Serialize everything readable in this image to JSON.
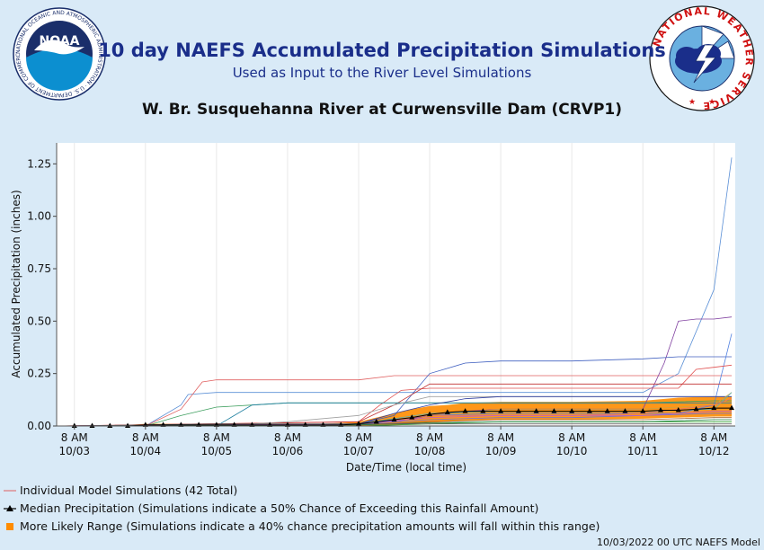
{
  "header": {
    "title": "10 day NAEFS Accumulated Precipitation Simulations",
    "subtitle": "Used as Input to the River Level Simulations",
    "station": "W. Br. Susquehanna River at Curwensville Dam (CRVP1)"
  },
  "logos": {
    "noaa": {
      "text": "NOAA",
      "ring_text": "NATIONAL OCEANIC AND ATMOSPHERIC ADMINISTRATION · U.S. DEPARTMENT OF COMMERCE"
    },
    "nws": {
      "ring_text": "NATIONAL WEATHER SERVICE"
    }
  },
  "legend": {
    "individual": "Individual Model Simulations (42 Total)",
    "median": "Median Precipitation (Simulations indicate a 50% Chance of Exceeding this Rainfall Amount)",
    "range": "More Likely Range (Simulations indicate a 40% chance precipitation amounts will fall within this range)"
  },
  "footer": {
    "model_run": "10/03/2022 00 UTC NAEFS Model"
  },
  "colors": {
    "median": "#000000",
    "range_fill": "#ff8c00",
    "individual_default": "#d04040",
    "axis_text": "#111111",
    "plot_bg": "#ffffff"
  },
  "chart_data": {
    "type": "line",
    "xlabel": "Date/Time (local time)",
    "ylabel": "Accumulated Precipitation (inches)",
    "ylim": [
      0,
      1.35
    ],
    "xlim": [
      -0.25,
      9.3
    ],
    "y_ticks": [
      "0.00",
      "0.25",
      "0.50",
      "0.75",
      "1.00",
      "1.25"
    ],
    "y_tick_values": [
      0,
      0.25,
      0.5,
      0.75,
      1.0,
      1.25
    ],
    "x_tick_labels": [
      {
        "time": "8 AM",
        "date": "10/03"
      },
      {
        "time": "8 AM",
        "date": "10/04"
      },
      {
        "time": "8 AM",
        "date": "10/05"
      },
      {
        "time": "8 AM",
        "date": "10/06"
      },
      {
        "time": "8 AM",
        "date": "10/07"
      },
      {
        "time": "8 AM",
        "date": "10/08"
      },
      {
        "time": "8 AM",
        "date": "10/09"
      },
      {
        "time": "8 AM",
        "date": "10/10"
      },
      {
        "time": "8 AM",
        "date": "10/11"
      },
      {
        "time": "8 AM",
        "date": "10/12"
      }
    ],
    "x_tick_values": [
      0,
      1,
      2,
      3,
      4,
      5,
      6,
      7,
      8,
      9
    ],
    "x_unit": "days after 8 AM 10/03",
    "median": {
      "x": [
        -0.25,
        0,
        0.25,
        0.5,
        0.75,
        1,
        1.25,
        1.5,
        1.75,
        2,
        2.25,
        2.5,
        2.75,
        3,
        3.25,
        3.5,
        3.75,
        4,
        4.25,
        4.5,
        4.75,
        5,
        5.25,
        5.5,
        5.75,
        6,
        6.25,
        6.5,
        6.75,
        7,
        7.25,
        7.5,
        7.75,
        8,
        8.25,
        8.5,
        8.75,
        9,
        9.25
      ],
      "y": [
        0,
        0,
        0,
        0,
        0,
        0.005,
        0.005,
        0.005,
        0.005,
        0.005,
        0.005,
        0.005,
        0.005,
        0.005,
        0.005,
        0.005,
        0.005,
        0.01,
        0.02,
        0.03,
        0.04,
        0.055,
        0.065,
        0.07,
        0.07,
        0.07,
        0.07,
        0.07,
        0.07,
        0.07,
        0.07,
        0.07,
        0.07,
        0.07,
        0.075,
        0.075,
        0.08,
        0.085,
        0.085
      ]
    },
    "range": {
      "x": [
        -0.25,
        0,
        0.5,
        1,
        1.5,
        2,
        2.5,
        3,
        3.5,
        4,
        4.25,
        4.5,
        4.75,
        5,
        5.25,
        5.5,
        6,
        7,
        8,
        8.5,
        9,
        9.25
      ],
      "low": [
        0,
        0,
        0,
        0,
        0,
        0,
        0,
        0,
        0,
        0,
        0,
        0.005,
        0.01,
        0.015,
        0.02,
        0.025,
        0.03,
        0.03,
        0.035,
        0.04,
        0.045,
        0.045
      ],
      "high": [
        0,
        0,
        0,
        0.01,
        0.01,
        0.01,
        0.01,
        0.01,
        0.01,
        0.02,
        0.04,
        0.06,
        0.08,
        0.095,
        0.1,
        0.11,
        0.115,
        0.115,
        0.12,
        0.135,
        0.14,
        0.14
      ]
    },
    "series": [
      {
        "color": "#5a8fd6",
        "x": [
          -0.25,
          1,
          1.5,
          1.6,
          2,
          3,
          3.5,
          4,
          4.5,
          5,
          5.5,
          6,
          7,
          8,
          8.5,
          9,
          9.25
        ],
        "y": [
          0,
          0,
          0.1,
          0.15,
          0.16,
          0.16,
          0.16,
          0.16,
          0.16,
          0.16,
          0.16,
          0.16,
          0.16,
          0.16,
          0.25,
          0.65,
          1.28
        ]
      },
      {
        "color": "#e06060",
        "x": [
          -0.25,
          1,
          1.5,
          1.8,
          2,
          3,
          4,
          4.5,
          5,
          6,
          7,
          8,
          9,
          9.25
        ],
        "y": [
          0,
          0,
          0.08,
          0.21,
          0.22,
          0.22,
          0.22,
          0.24,
          0.24,
          0.24,
          0.24,
          0.24,
          0.24,
          0.24
        ]
      },
      {
        "color": "#8040a0",
        "x": [
          -0.25,
          3,
          4,
          4.5,
          5,
          5.5,
          6,
          7,
          8,
          8.3,
          8.5,
          8.75,
          9,
          9.25
        ],
        "y": [
          0,
          0,
          0.01,
          0.02,
          0.05,
          0.07,
          0.08,
          0.08,
          0.08,
          0.3,
          0.5,
          0.51,
          0.51,
          0.52
        ]
      },
      {
        "color": "#4060c0",
        "x": [
          -0.25,
          3,
          4,
          4.5,
          5,
          5.5,
          6,
          7,
          8,
          8.5,
          9,
          9.25
        ],
        "y": [
          0,
          0,
          0.01,
          0.05,
          0.25,
          0.3,
          0.31,
          0.31,
          0.32,
          0.33,
          0.33,
          0.33
        ]
      },
      {
        "color": "#5080e0",
        "x": [
          -0.25,
          4,
          5,
          6,
          7,
          8,
          8.5,
          9,
          9.25
        ],
        "y": [
          0,
          0.01,
          0.05,
          0.06,
          0.06,
          0.06,
          0.06,
          0.1,
          0.44
        ]
      },
      {
        "color": "#e05050",
        "x": [
          -0.25,
          4,
          4.3,
          4.6,
          5,
          6,
          7,
          8,
          8.5,
          8.75,
          9,
          9.25
        ],
        "y": [
          0,
          0.02,
          0.1,
          0.17,
          0.18,
          0.18,
          0.18,
          0.18,
          0.18,
          0.27,
          0.28,
          0.29
        ]
      },
      {
        "color": "#c03030",
        "x": [
          -0.25,
          4,
          4.5,
          5,
          6,
          7,
          8,
          9,
          9.25
        ],
        "y": [
          0,
          0.02,
          0.1,
          0.2,
          0.2,
          0.2,
          0.2,
          0.2,
          0.2
        ]
      },
      {
        "color": "#40a060",
        "x": [
          -0.25,
          1,
          1.5,
          2,
          2.5,
          3,
          4,
          5,
          6,
          7,
          8,
          9,
          9.25
        ],
        "y": [
          0,
          0,
          0.05,
          0.09,
          0.1,
          0.11,
          0.11,
          0.11,
          0.11,
          0.11,
          0.11,
          0.12,
          0.12
        ]
      },
      {
        "color": "#2080a0",
        "x": [
          -0.25,
          2,
          2.5,
          3,
          4,
          5,
          6,
          7,
          8,
          9,
          9.25
        ],
        "y": [
          0,
          0,
          0.1,
          0.11,
          0.11,
          0.11,
          0.11,
          0.11,
          0.11,
          0.11,
          0.11
        ]
      },
      {
        "color": "#a0a0a0",
        "x": [
          -0.25,
          2,
          3,
          4,
          4.5,
          5,
          6,
          7,
          8,
          9,
          9.25
        ],
        "y": [
          0,
          0,
          0.02,
          0.05,
          0.1,
          0.14,
          0.14,
          0.14,
          0.14,
          0.14,
          0.14
        ]
      },
      {
        "color": "#3040a0",
        "x": [
          -0.25,
          4,
          4.5,
          5,
          5.5,
          6,
          7,
          8,
          9,
          9.25
        ],
        "y": [
          0,
          0.01,
          0.06,
          0.1,
          0.13,
          0.14,
          0.14,
          0.14,
          0.14,
          0.14
        ]
      },
      {
        "color": "#d0a040",
        "x": [
          -0.25,
          4,
          5,
          6,
          7,
          8,
          9,
          9.25
        ],
        "y": [
          0,
          0.01,
          0.05,
          0.08,
          0.08,
          0.08,
          0.1,
          0.16
        ]
      },
      {
        "color": "#60b0b0",
        "x": [
          -0.25,
          3,
          4,
          5,
          6,
          7,
          8,
          9,
          9.25
        ],
        "y": [
          0,
          0,
          0.01,
          0.06,
          0.07,
          0.07,
          0.07,
          0.08,
          0.16
        ]
      },
      {
        "color": "#e07070",
        "x": [
          -0.25,
          4,
          4.5,
          5,
          6,
          7,
          8,
          9,
          9.25
        ],
        "y": [
          0,
          0.005,
          0.03,
          0.05,
          0.05,
          0.05,
          0.06,
          0.1,
          0.13
        ]
      },
      {
        "color": "#7070d0",
        "x": [
          -0.25,
          4,
          5,
          6,
          7,
          8,
          9,
          9.25
        ],
        "y": [
          0,
          0.01,
          0.03,
          0.04,
          0.04,
          0.05,
          0.06,
          0.06
        ]
      },
      {
        "color": "#a06030",
        "x": [
          -0.25,
          4,
          5,
          6,
          7,
          8,
          9,
          9.25
        ],
        "y": [
          0,
          0.005,
          0.02,
          0.03,
          0.03,
          0.03,
          0.04,
          0.04
        ]
      },
      {
        "color": "#30a030",
        "x": [
          -0.25,
          4,
          5,
          6,
          7,
          8,
          9,
          9.25
        ],
        "y": [
          0,
          0,
          0.01,
          0.02,
          0.02,
          0.02,
          0.02,
          0.02
        ]
      },
      {
        "color": "#c060c0",
        "x": [
          -0.25,
          4,
          5,
          6,
          7,
          8,
          9,
          9.25
        ],
        "y": [
          0,
          0.01,
          0.04,
          0.05,
          0.05,
          0.05,
          0.07,
          0.07
        ]
      },
      {
        "color": "#208040",
        "x": [
          -0.25,
          4,
          5,
          6,
          7,
          8,
          9,
          9.25
        ],
        "y": [
          0,
          0.005,
          0.015,
          0.02,
          0.02,
          0.02,
          0.03,
          0.03
        ]
      },
      {
        "color": "#606060",
        "x": [
          -0.25,
          1,
          2,
          3,
          4,
          5,
          6,
          7,
          8,
          9,
          9.25
        ],
        "y": [
          0,
          0.005,
          0.01,
          0.01,
          0.01,
          0.01,
          0.01,
          0.01,
          0.01,
          0.01,
          0.01
        ]
      }
    ]
  }
}
